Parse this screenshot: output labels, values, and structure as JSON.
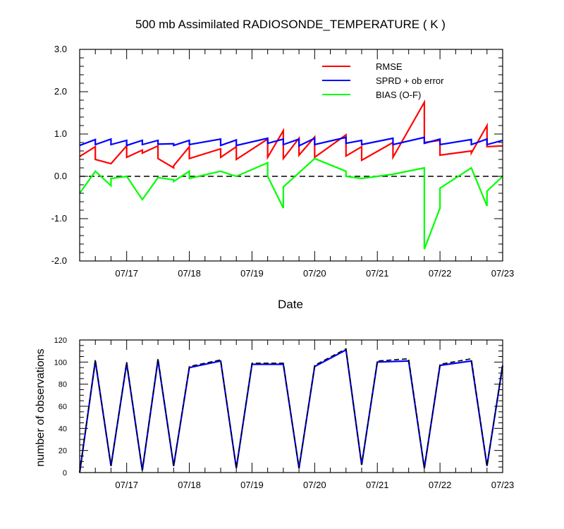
{
  "chart_data": [
    {
      "type": "line",
      "title": "500 mb Assimilated RADIOSONDE_TEMPERATURE ( K )",
      "xlabel": "Date",
      "ylabel": "",
      "xlim": [
        "07/16 06:00",
        "07/23 00:00"
      ],
      "ylim": [
        -2.0,
        3.0
      ],
      "x_ticks": [
        "07/17",
        "07/18",
        "07/19",
        "07/20",
        "07/21",
        "07/22",
        "07/23"
      ],
      "y_ticks": [
        "3.0",
        "2.0",
        "1.0",
        "0.0",
        "-1.0",
        "-2.0"
      ],
      "legend": {
        "placement": "top-right",
        "labels": [
          "RMSE",
          "SPRD + ob error",
          "BIAS (O-F)"
        ]
      },
      "reference_line": {
        "y": 0.0,
        "style": "dashed"
      },
      "series": [
        {
          "name": "RMSE",
          "color": "#ff0000",
          "x": [
            "07/16 06:00",
            "07/16 12:00",
            "07/16 12:00",
            "07/16 18:00",
            "07/16 18:00",
            "07/17 00:00",
            "07/17 00:00",
            "07/17 06:00",
            "07/17 06:00",
            "07/17 12:00",
            "07/17 12:00",
            "07/17 18:00",
            "07/17 18:00",
            "07/18 00:00",
            "07/18 00:00",
            "07/18 12:00",
            "07/18 12:00",
            "07/18 18:00",
            "07/18 18:00",
            "07/19 06:00",
            "07/19 06:00",
            "07/19 12:00",
            "07/19 12:00",
            "07/19 18:00",
            "07/19 18:00",
            "07/20 00:00",
            "07/20 00:00",
            "07/20 12:00",
            "07/20 12:00",
            "07/20 18:00",
            "07/20 18:00",
            "07/21 06:00",
            "07/21 06:00",
            "07/21 18:00",
            "07/21 18:00",
            "07/22 00:00",
            "07/22 00:00",
            "07/22 12:00",
            "07/22 12:00",
            "07/22 18:00",
            "07/22 18:00",
            "07/23 00:00"
          ],
          "y": [
            0.47,
            0.7,
            0.4,
            0.3,
            0.3,
            0.72,
            0.45,
            0.62,
            0.55,
            0.72,
            0.42,
            0.2,
            0.25,
            0.7,
            0.42,
            0.65,
            0.45,
            0.7,
            0.4,
            0.88,
            0.45,
            1.08,
            0.42,
            0.9,
            0.5,
            0.93,
            0.45,
            0.98,
            0.48,
            0.7,
            0.38,
            0.8,
            0.45,
            1.75,
            0.8,
            0.85,
            0.5,
            0.6,
            0.55,
            1.2,
            0.7,
            0.72
          ]
        },
        {
          "name": "SPRD + ob error",
          "color": "#0000ff",
          "x": [
            "07/16 06:00",
            "07/16 12:00",
            "07/16 12:00",
            "07/16 18:00",
            "07/16 18:00",
            "07/17 00:00",
            "07/17 00:00",
            "07/17 06:00",
            "07/17 06:00",
            "07/17 12:00",
            "07/17 12:00",
            "07/17 18:00",
            "07/17 18:00",
            "07/18 00:00",
            "07/18 00:00",
            "07/18 12:00",
            "07/18 12:00",
            "07/18 18:00",
            "07/18 18:00",
            "07/19 06:00",
            "07/19 06:00",
            "07/19 12:00",
            "07/19 12:00",
            "07/19 18:00",
            "07/19 18:00",
            "07/20 00:00",
            "07/20 00:00",
            "07/20 12:00",
            "07/20 12:00",
            "07/20 18:00",
            "07/20 18:00",
            "07/21 06:00",
            "07/21 06:00",
            "07/21 18:00",
            "07/21 18:00",
            "07/22 00:00",
            "07/22 00:00",
            "07/22 12:00",
            "07/22 12:00",
            "07/22 18:00",
            "07/22 18:00",
            "07/23 00:00"
          ],
          "y": [
            0.73,
            0.87,
            0.75,
            0.88,
            0.75,
            0.85,
            0.73,
            0.85,
            0.75,
            0.85,
            0.76,
            0.77,
            0.73,
            0.85,
            0.75,
            0.88,
            0.73,
            0.86,
            0.73,
            0.9,
            0.78,
            0.88,
            0.75,
            0.88,
            0.72,
            0.9,
            0.75,
            0.92,
            0.78,
            0.85,
            0.75,
            0.9,
            0.75,
            0.92,
            0.78,
            0.88,
            0.75,
            0.87,
            0.75,
            0.88,
            0.75,
            0.85
          ]
        },
        {
          "name": "BIAS (O-F)",
          "color": "#00ff00",
          "x": [
            "07/16 06:00",
            "07/16 12:00",
            "07/16 18:00",
            "07/16 18:00",
            "07/17 00:00",
            "07/17 06:00",
            "07/17 12:00",
            "07/17 18:00",
            "07/17 18:00",
            "07/18 00:00",
            "07/18 00:00",
            "07/18 12:00",
            "07/18 18:00",
            "07/18 18:00",
            "07/19 06:00",
            "07/19 06:00",
            "07/19 12:00",
            "07/19 12:00",
            "07/20 00:00",
            "07/20 12:00",
            "07/20 12:00",
            "07/20 18:00",
            "07/21 00:00",
            "07/21 06:00",
            "07/21 18:00",
            "07/21 18:00",
            "07/22 00:00",
            "07/22 00:00",
            "07/22 12:00",
            "07/22 18:00",
            "07/22 18:00",
            "07/23 00:00"
          ],
          "y": [
            -0.4,
            0.12,
            -0.22,
            -0.05,
            0.0,
            -0.55,
            -0.03,
            -0.08,
            -0.12,
            0.12,
            -0.05,
            0.12,
            0.0,
            0.0,
            0.32,
            0.0,
            -0.75,
            -0.25,
            0.42,
            0.12,
            0.0,
            -0.05,
            0.0,
            0.05,
            0.2,
            -1.72,
            -0.75,
            -0.28,
            0.2,
            -0.7,
            -0.35,
            0.0
          ]
        }
      ]
    },
    {
      "type": "line",
      "title": "",
      "xlabel": "",
      "ylabel": "number of observations",
      "xlim": [
        "07/16 06:00",
        "07/23 00:00"
      ],
      "ylim": [
        0,
        120
      ],
      "x_ticks": [
        "07/17",
        "07/18",
        "07/19",
        "07/20",
        "07/21",
        "07/22",
        "07/23"
      ],
      "y_ticks": [
        "120",
        "100",
        "80",
        "60",
        "40",
        "20",
        "0"
      ],
      "series": [
        {
          "name": "",
          "color": "#0000ff",
          "style": "solid",
          "x": [
            "07/16 06:00",
            "07/16 12:00",
            "07/16 18:00",
            "07/17 00:00",
            "07/17 06:00",
            "07/17 12:00",
            "07/17 18:00",
            "07/18 00:00",
            "07/18 12:00",
            "07/18 18:00",
            "07/19 00:00",
            "07/19 12:00",
            "07/19 18:00",
            "07/20 00:00",
            "07/20 12:00",
            "07/20 18:00",
            "07/21 00:00",
            "07/21 12:00",
            "07/21 18:00",
            "07/22 00:00",
            "07/22 12:00",
            "07/22 18:00",
            "07/23 00:00"
          ],
          "y": [
            0,
            101,
            6,
            99,
            2,
            102,
            6,
            95,
            101,
            4,
            98,
            98,
            4,
            96,
            111,
            7,
            100,
            101,
            4,
            97,
            101,
            6,
            97
          ]
        },
        {
          "name": "",
          "color": "#000000",
          "style": "dashed",
          "x": [
            "07/16 06:00",
            "07/16 12:00",
            "07/16 18:00",
            "07/17 00:00",
            "07/17 06:00",
            "07/17 12:00",
            "07/17 18:00",
            "07/18 00:00",
            "07/18 12:00",
            "07/18 18:00",
            "07/19 00:00",
            "07/19 12:00",
            "07/19 18:00",
            "07/20 00:00",
            "07/20 12:00",
            "07/20 18:00",
            "07/21 00:00",
            "07/21 12:00",
            "07/21 18:00",
            "07/22 00:00",
            "07/22 12:00",
            "07/22 18:00",
            "07/23 00:00"
          ],
          "y": [
            0,
            102,
            6,
            100,
            2,
            103,
            6,
            96,
            102,
            4,
            99,
            99,
            4,
            97,
            112,
            7,
            101,
            103,
            4,
            98,
            103,
            6,
            98
          ]
        }
      ]
    }
  ]
}
